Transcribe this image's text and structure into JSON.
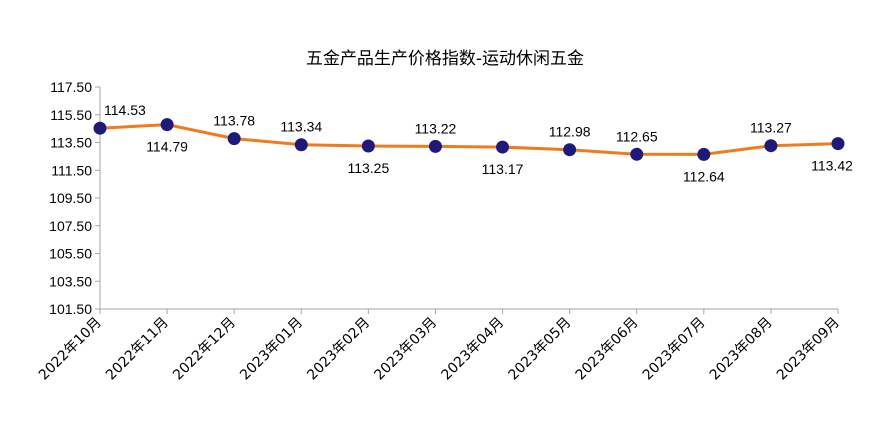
{
  "chart_data": {
    "type": "line",
    "title": "五金产品生产价格指数-运动休闲五金",
    "categories": [
      "2022年10月",
      "2022年11月",
      "2022年12月",
      "2023年01月",
      "2023年02月",
      "2023年03月",
      "2023年04月",
      "2023年05月",
      "2023年06月",
      "2023年07月",
      "2023年08月",
      "2023年09月"
    ],
    "series": [
      {
        "values": [
          114.53,
          114.79,
          113.78,
          113.34,
          113.25,
          113.22,
          113.17,
          112.98,
          112.65,
          112.64,
          113.27,
          113.42
        ]
      }
    ],
    "data_labels": [
      "114.53",
      "114.79",
      "113.78",
      "113.34",
      "113.25",
      "113.22",
      "113.17",
      "112.98",
      "112.65",
      "112.64",
      "113.27",
      "113.42"
    ],
    "ylim": [
      101.5,
      117.5
    ],
    "y_ticks": [
      "117.50",
      "115.50",
      "113.50",
      "111.50",
      "109.50",
      "107.50",
      "105.50",
      "103.50",
      "101.50"
    ],
    "xlabel": "",
    "ylabel": "",
    "grid": false,
    "legend": "none",
    "colors": {
      "line": "#F07A1E",
      "marker": "#1F1A7A",
      "axis": "#a6a6a6"
    }
  }
}
